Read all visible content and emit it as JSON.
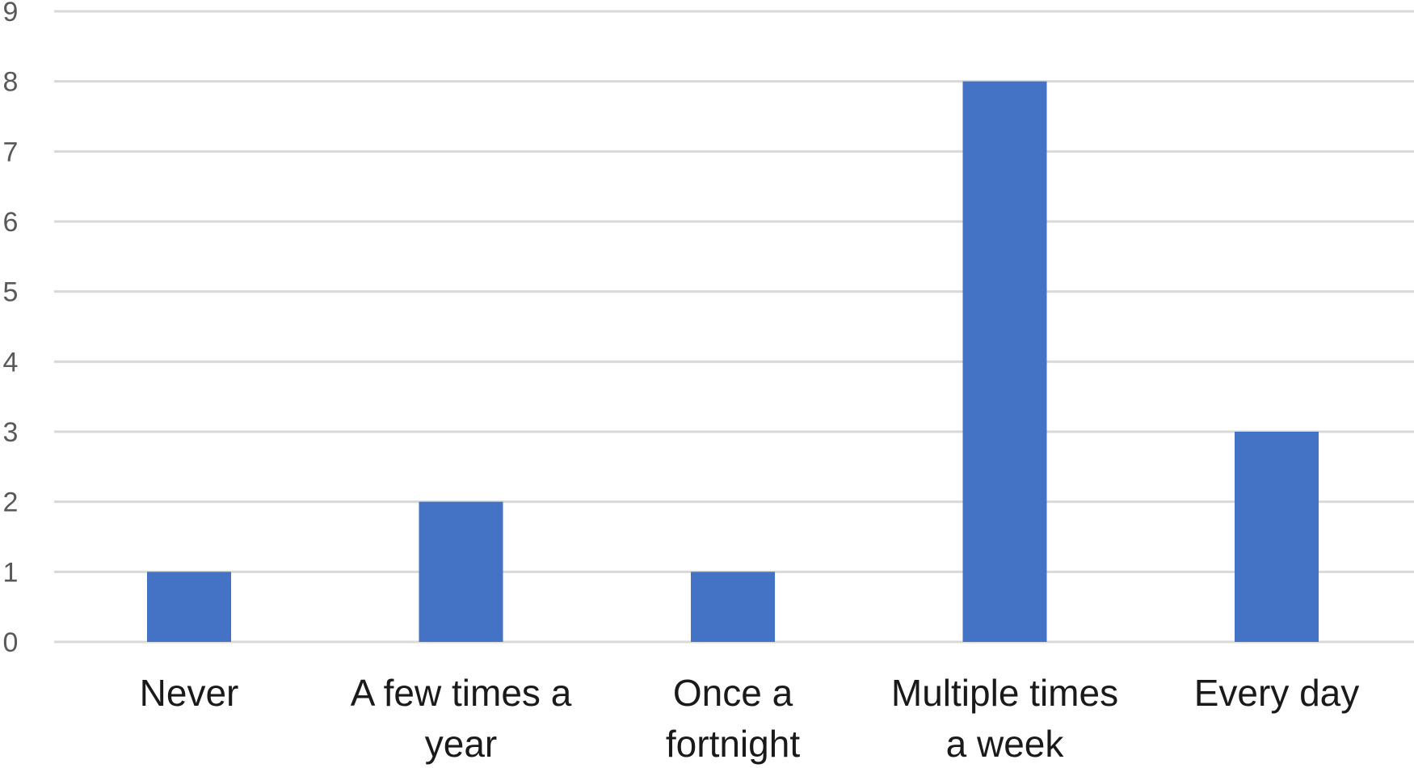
{
  "chart_data": {
    "type": "bar",
    "categories": [
      [
        "Never"
      ],
      [
        "A few times a",
        "year"
      ],
      [
        "Once a",
        "fortnight"
      ],
      [
        "Multiple times",
        "a week"
      ],
      [
        "Every day"
      ]
    ],
    "values": [
      1,
      2,
      1,
      8,
      3
    ],
    "yticks": [
      "0",
      "1",
      "2",
      "3",
      "4",
      "5",
      "6",
      "7",
      "8",
      "9"
    ],
    "ylim": [
      0,
      9
    ],
    "grid": true,
    "legend": "none",
    "bar_color": "#4472c4",
    "grid_color": "#d9d9d9"
  }
}
